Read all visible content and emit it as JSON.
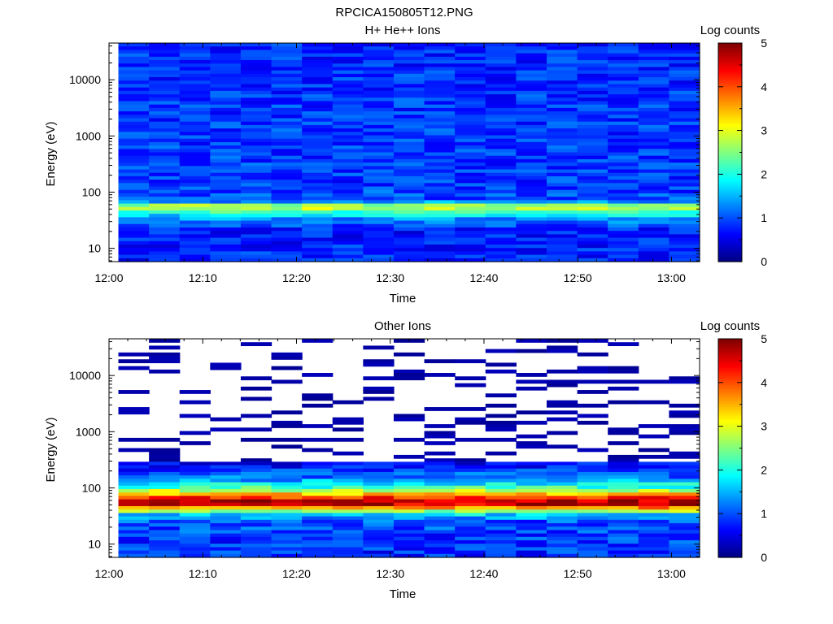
{
  "figure_title": "RPCICA150805T12.PNG",
  "colors": {
    "colormap": [
      "#00007f",
      "#0000ff",
      "#0080ff",
      "#00ffff",
      "#80ff80",
      "#ffff00",
      "#ff8000",
      "#ff0000",
      "#7f0000"
    ],
    "background": "#ffffff",
    "axis": "#000000"
  },
  "chart_data": [
    {
      "type": "heatmap",
      "title": "H+ He++ Ions",
      "xlabel": "Time",
      "ylabel": "Energy (eV)",
      "x_tick_labels": [
        "12:00",
        "12:10",
        "12:20",
        "12:30",
        "12:40",
        "12:50",
        "13:00"
      ],
      "x_tick_minutes": [
        0,
        10,
        20,
        30,
        40,
        50,
        60
      ],
      "xlim_minutes": [
        0,
        63
      ],
      "data_x_range_minutes": [
        1,
        63
      ],
      "time_bins": 19,
      "y_scale": "log",
      "ylim": [
        5.8,
        45000
      ],
      "y_tick_values": [
        10,
        100,
        1000,
        10000
      ],
      "y_tick_labels": [
        "10",
        "100",
        "1000",
        "10000"
      ],
      "colorbar_label": "Log counts",
      "colorbar_ticks": [
        "0",
        "1",
        "2",
        "3",
        "4",
        "5"
      ],
      "clim": [
        0,
        5
      ],
      "profile_energy_ev": [
        6,
        10,
        20,
        35,
        45,
        55,
        70,
        150,
        1000,
        10000,
        45000
      ],
      "profile_log_counts": [
        0.8,
        0.8,
        0.7,
        1.4,
        2.3,
        3.1,
        1.0,
        0.9,
        0.9,
        0.85,
        0.8
      ],
      "noise_amplitude": 0.35,
      "empty_fraction": 0
    },
    {
      "type": "heatmap",
      "title": "Other Ions",
      "xlabel": "Time",
      "ylabel": "Energy (eV)",
      "x_tick_labels": [
        "12:00",
        "12:10",
        "12:20",
        "12:30",
        "12:40",
        "12:50",
        "13:00"
      ],
      "x_tick_minutes": [
        0,
        10,
        20,
        30,
        40,
        50,
        60
      ],
      "xlim_minutes": [
        0,
        63
      ],
      "data_x_range_minutes": [
        1,
        63
      ],
      "time_bins": 19,
      "y_scale": "log",
      "ylim": [
        5.8,
        45000
      ],
      "y_tick_values": [
        10,
        100,
        1000,
        10000
      ],
      "y_tick_labels": [
        "10",
        "100",
        "1000",
        "10000"
      ],
      "colorbar_label": "Log counts",
      "colorbar_ticks": [
        "0",
        "1",
        "2",
        "3",
        "4",
        "5"
      ],
      "clim": [
        0,
        5
      ],
      "profile_energy_ev": [
        6,
        12,
        25,
        35,
        40,
        50,
        60,
        75,
        100,
        150,
        250,
        400,
        45000
      ],
      "profile_log_counts": [
        0.8,
        0.9,
        1.0,
        1.8,
        3.0,
        4.6,
        4.7,
        3.6,
        2.2,
        1.2,
        0.7,
        0.2,
        0.1
      ],
      "noise_amplitude": 0.4,
      "empty_fraction": 0.78,
      "empty_above_ev": 300
    }
  ]
}
